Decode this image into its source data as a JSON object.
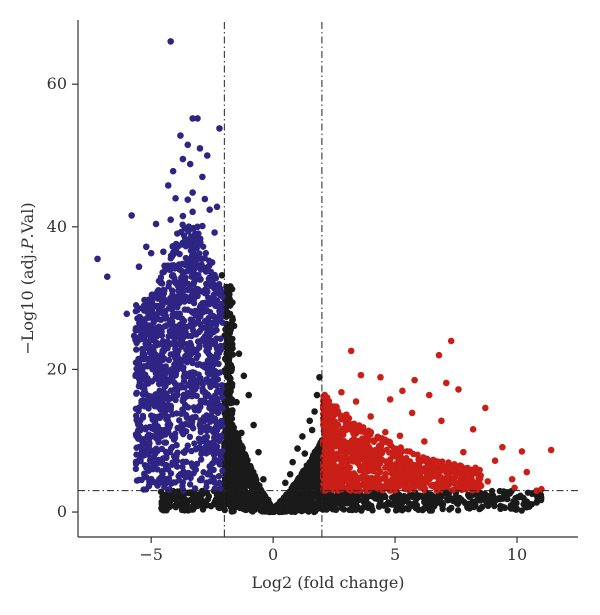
{
  "chart_data": {
    "type": "scatter",
    "title": "",
    "xlabel": "Log2 (fold change)",
    "ylabel_prefix": "−Log10 (adj.",
    "ylabel_italic": "P",
    "ylabel_suffix": ".Val)",
    "xlim": [
      -8,
      12.5
    ],
    "ylim": [
      -3.5,
      69
    ],
    "xticks": [
      -5,
      0,
      5,
      10
    ],
    "yticks": [
      0,
      20,
      40,
      60
    ],
    "grid": false,
    "legend": "none",
    "thresholds": {
      "log2fc": [
        -2,
        2
      ],
      "neg_log10_p": 3
    },
    "series": [
      {
        "color": "#2e2483",
        "group": "down",
        "points": [
          [
            -4.2,
            66
          ],
          [
            -3.3,
            55.2
          ],
          [
            -3.1,
            55.2
          ],
          [
            -2.2,
            53.8
          ],
          [
            -3.8,
            52.8
          ],
          [
            -3.5,
            51.5
          ],
          [
            -3.0,
            51.0
          ],
          [
            -2.7,
            50.0
          ],
          [
            -3.7,
            49.5
          ],
          [
            -3.4,
            48.8
          ],
          [
            -4.1,
            47.8
          ],
          [
            -2.9,
            47.0
          ],
          [
            -4.3,
            45.8
          ],
          [
            -3.3,
            44.8
          ],
          [
            -4.0,
            44.0
          ],
          [
            -3.5,
            43.8
          ],
          [
            -2.8,
            43.9
          ],
          [
            -2.3,
            42.8
          ],
          [
            -2.6,
            42.4
          ],
          [
            -3.3,
            42.1
          ],
          [
            -3.7,
            41.5
          ],
          [
            -4.2,
            41.0
          ],
          [
            -5.8,
            41.6
          ],
          [
            -2.4,
            39.2
          ],
          [
            -2.9,
            40.1
          ],
          [
            -4.8,
            40.4
          ],
          [
            -3.1,
            40.0
          ],
          [
            -3.6,
            38.3
          ],
          [
            -3.9,
            37.3
          ],
          [
            -5.2,
            37.2
          ],
          [
            -5.0,
            36.3
          ],
          [
            -4.5,
            36.5
          ],
          [
            -2.5,
            35.0
          ],
          [
            -3.2,
            35.1
          ],
          [
            -5.5,
            34.4
          ],
          [
            -4.1,
            33.2
          ],
          [
            -3.0,
            32.6
          ],
          [
            -4.7,
            31.1
          ],
          [
            -2.7,
            30.9
          ],
          [
            -5.3,
            28.9
          ],
          [
            -2.2,
            28.2
          ],
          [
            -6.0,
            27.8
          ],
          [
            -4.4,
            27.5
          ],
          [
            -3.4,
            26.1
          ],
          [
            -5.7,
            24.7
          ],
          [
            -2.4,
            24.0
          ],
          [
            -3.9,
            22.6
          ],
          [
            -5.2,
            21.5
          ],
          [
            -2.8,
            20.3
          ],
          [
            -4.6,
            19.3
          ],
          [
            -3.3,
            18.7
          ],
          [
            -5.0,
            16.2
          ],
          [
            -2.5,
            15.6
          ],
          [
            -4.2,
            14.4
          ],
          [
            -3.6,
            12.3
          ],
          [
            -2.3,
            11.5
          ],
          [
            -4.8,
            10.4
          ],
          [
            -3.0,
            8.9
          ],
          [
            -4.4,
            7.7
          ],
          [
            -2.6,
            6.4
          ],
          [
            -3.8,
            5.3
          ],
          [
            -2.2,
            4.1
          ],
          [
            -3.2,
            3.3
          ],
          [
            -4.6,
            4.6
          ],
          [
            -6.8,
            33.0
          ],
          [
            -7.2,
            35.5
          ]
        ]
      },
      {
        "color": "#c91f17",
        "group": "up",
        "points": [
          [
            7.3,
            24.0
          ],
          [
            6.8,
            22.0
          ],
          [
            3.2,
            22.6
          ],
          [
            7.1,
            18.1
          ],
          [
            5.8,
            18.5
          ],
          [
            4.4,
            18.9
          ],
          [
            3.6,
            19.2
          ],
          [
            7.6,
            17.2
          ],
          [
            5.3,
            17.0
          ],
          [
            2.8,
            16.8
          ],
          [
            6.4,
            16.4
          ],
          [
            4.8,
            15.8
          ],
          [
            3.4,
            15.5
          ],
          [
            8.7,
            14.6
          ],
          [
            2.5,
            14.8
          ],
          [
            5.7,
            13.9
          ],
          [
            4.0,
            13.4
          ],
          [
            6.9,
            12.8
          ],
          [
            3.0,
            12.3
          ],
          [
            8.2,
            11.6
          ],
          [
            4.6,
            11.2
          ],
          [
            5.2,
            10.7
          ],
          [
            9.4,
            9.1
          ],
          [
            6.2,
            9.9
          ],
          [
            2.7,
            9.5
          ],
          [
            10.2,
            8.5
          ],
          [
            7.8,
            8.4
          ],
          [
            3.8,
            8.2
          ],
          [
            11.4,
            8.7
          ],
          [
            5.1,
            7.7
          ],
          [
            9.1,
            7.2
          ],
          [
            6.7,
            7.0
          ],
          [
            2.4,
            7.0
          ],
          [
            8.3,
            6.2
          ],
          [
            4.3,
            6.5
          ],
          [
            7.4,
            5.8
          ],
          [
            10.4,
            5.6
          ],
          [
            3.1,
            5.5
          ],
          [
            5.9,
            5.1
          ],
          [
            9.8,
            4.6
          ],
          [
            2.6,
            4.5
          ],
          [
            8.8,
            4.3
          ],
          [
            4.7,
            4.0
          ],
          [
            6.5,
            3.7
          ],
          [
            10.8,
            3.0
          ],
          [
            3.5,
            3.4
          ],
          [
            7.9,
            3.2
          ],
          [
            2.2,
            3.2
          ],
          [
            5.4,
            3.6
          ],
          [
            9.9,
            3.4
          ],
          [
            11.0,
            3.2
          ],
          [
            2.9,
            6.0
          ],
          [
            4.1,
            10.0
          ],
          [
            3.3,
            11.0
          ]
        ]
      },
      {
        "color": "#1a1a1a",
        "group": "not significant",
        "points": [
          [
            -2.1,
            33.2
          ],
          [
            -1.8,
            29.5
          ],
          [
            -1.6,
            26.1
          ],
          [
            -1.9,
            24.8
          ],
          [
            -1.4,
            22.2
          ],
          [
            -1.2,
            19.1
          ],
          [
            -1.7,
            20.0
          ],
          [
            -1.0,
            16.4
          ],
          [
            -1.5,
            15.4
          ],
          [
            -0.8,
            12.2
          ],
          [
            -1.3,
            11.1
          ],
          [
            -0.6,
            8.4
          ],
          [
            -1.1,
            7.5
          ],
          [
            -0.4,
            4.6
          ],
          [
            -0.9,
            4.0
          ],
          [
            -0.2,
            1.7
          ],
          [
            0.0,
            0.2
          ],
          [
            0.3,
            1.5
          ],
          [
            0.5,
            4.1
          ],
          [
            0.8,
            7.0
          ],
          [
            1.0,
            8.9
          ],
          [
            1.2,
            10.6
          ],
          [
            1.5,
            12.8
          ],
          [
            1.7,
            14.1
          ],
          [
            1.9,
            18.9
          ],
          [
            1.8,
            16.4
          ],
          [
            1.6,
            11.5
          ],
          [
            1.3,
            8.2
          ],
          [
            0.7,
            5.3
          ],
          [
            1.1,
            3.6
          ],
          [
            -2.3,
            2.4
          ],
          [
            -3.1,
            2.0
          ],
          [
            -4.0,
            1.7
          ],
          [
            2.3,
            2.3
          ],
          [
            3.3,
            1.8
          ],
          [
            4.4,
            1.6
          ],
          [
            5.6,
            2.3
          ],
          [
            6.2,
            1.4
          ],
          [
            7.1,
            2.7
          ],
          [
            8.0,
            2.4
          ],
          [
            8.9,
            1.9
          ],
          [
            9.7,
            2.6
          ],
          [
            10.1,
            2.1
          ],
          [
            6.6,
            0.8
          ],
          [
            5.0,
            1.0
          ],
          [
            3.9,
            0.6
          ]
        ]
      }
    ]
  }
}
